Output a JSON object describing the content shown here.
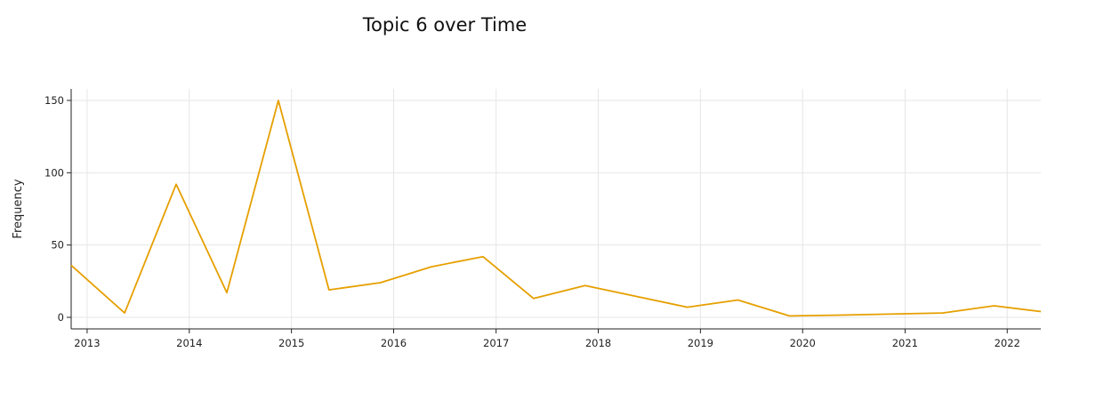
{
  "chart_data": {
    "type": "line",
    "title": "Topic 6 over Time",
    "xlabel": "",
    "ylabel": "Frequency",
    "x_ticks": [
      "2013",
      "2014",
      "2015",
      "2016",
      "2017",
      "2018",
      "2019",
      "2020",
      "2021",
      "2022"
    ],
    "y_ticks": [
      0,
      50,
      100,
      150
    ],
    "xlim": [
      "2012-11-05",
      "2022-05-01"
    ],
    "ylim": [
      -8,
      158
    ],
    "grid": true,
    "series": [
      {
        "color": "#E69F00",
        "points": [
          {
            "x": "2012-11-05",
            "y": 36
          },
          {
            "x": "2013-05-15",
            "y": 3
          },
          {
            "x": "2013-11-15",
            "y": 92
          },
          {
            "x": "2014-05-15",
            "y": 17
          },
          {
            "x": "2014-11-15",
            "y": 150
          },
          {
            "x": "2015-05-15",
            "y": 19
          },
          {
            "x": "2015-11-15",
            "y": 24
          },
          {
            "x": "2016-05-15",
            "y": 35
          },
          {
            "x": "2016-11-15",
            "y": 42
          },
          {
            "x": "2017-05-15",
            "y": 13
          },
          {
            "x": "2017-11-15",
            "y": 22
          },
          {
            "x": "2018-11-15",
            "y": 7
          },
          {
            "x": "2019-05-15",
            "y": 12
          },
          {
            "x": "2019-11-15",
            "y": 1
          },
          {
            "x": "2020-05-15",
            "y": 1.5
          },
          {
            "x": "2021-05-15",
            "y": 3
          },
          {
            "x": "2021-11-15",
            "y": 8
          },
          {
            "x": "2022-05-01",
            "y": 4
          }
        ]
      }
    ]
  }
}
